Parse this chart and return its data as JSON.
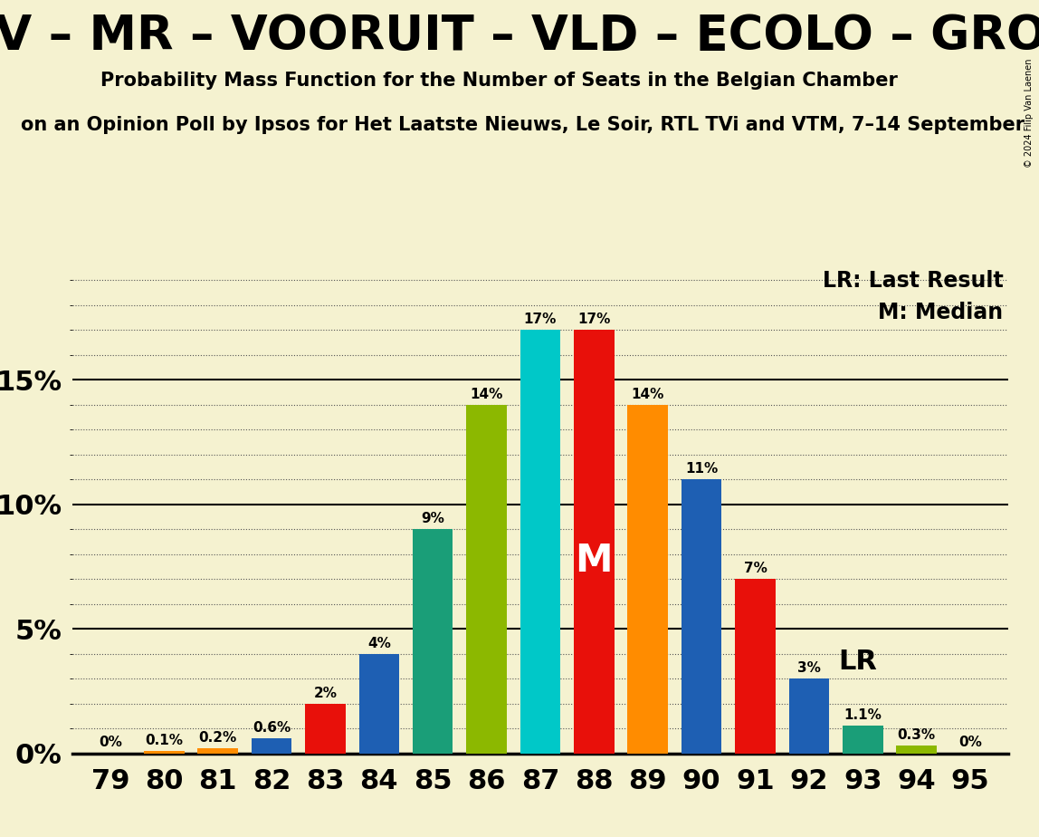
{
  "seats": [
    79,
    80,
    81,
    82,
    83,
    84,
    85,
    86,
    87,
    88,
    89,
    90,
    91,
    92,
    93,
    94,
    95
  ],
  "probabilities": [
    0.0,
    0.1,
    0.2,
    0.6,
    2.0,
    4.0,
    9.0,
    14.0,
    17.0,
    17.0,
    14.0,
    11.0,
    7.0,
    3.0,
    1.1,
    0.3,
    0.0
  ],
  "bar_colors": [
    "#e8100a",
    "#ff8c00",
    "#ff8c00",
    "#1e5fb3",
    "#e8100a",
    "#1e5fb3",
    "#1a9e78",
    "#8cb800",
    "#00c8c8",
    "#e8100a",
    "#ff8c00",
    "#1e5fb3",
    "#e8100a",
    "#1e5fb3",
    "#1a9e78",
    "#8cb800",
    "#ff8c00"
  ],
  "median_seat": 88,
  "lr_seat": 92,
  "title1": "– CD&V – MR – VOORUIT – VLD – ECOLO – GROEN –",
  "title2": "Probability Mass Function for the Number of Seats in the Belgian Chamber",
  "subtitle": "on an Opinion Poll by Ipsos for Het Laatste Nieuws, Le Soir, RTL TVi and VTM, 7–14 September",
  "copyright": "© 2024 Filip Van Laenen",
  "background_color": "#f5f2d0",
  "yticks": [
    0,
    5,
    10,
    15
  ],
  "ylim": [
    0,
    19.5
  ],
  "label_lr": "LR: Last Result",
  "label_m": "M: Median",
  "annotation_m": "M",
  "annotation_lr": "LR"
}
